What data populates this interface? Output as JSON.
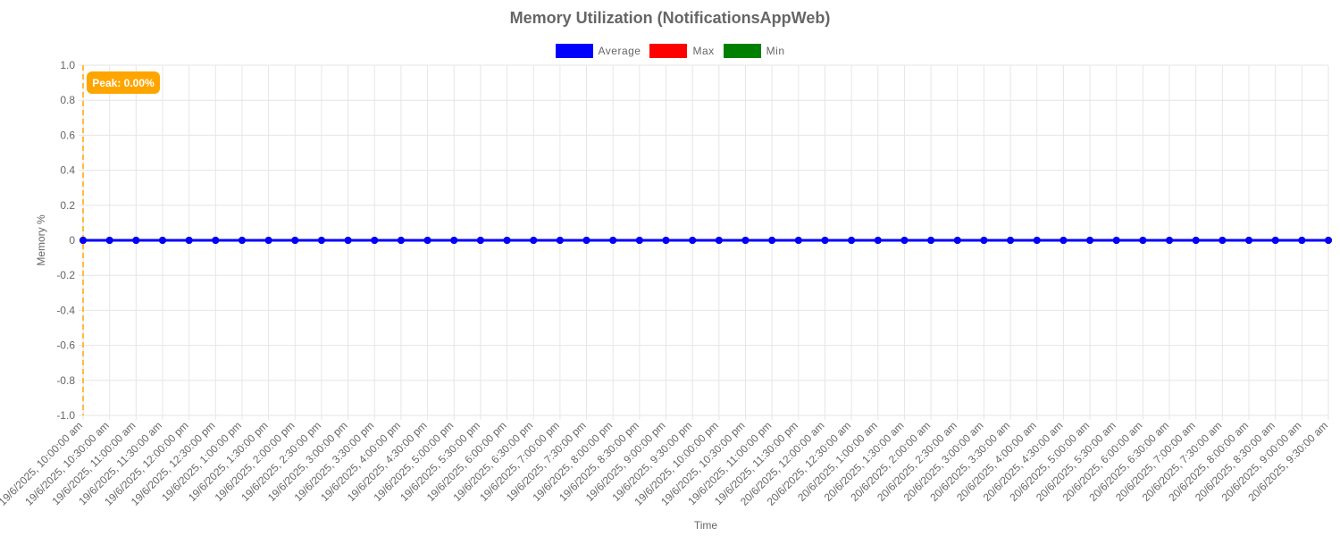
{
  "chart_data": {
    "type": "line",
    "title": "Memory Utilization (NotificationsAppWeb)",
    "xlabel": "Time",
    "ylabel": "Memory %",
    "ylim": [
      -1.0,
      1.0
    ],
    "y_ticks": [
      "1.0",
      "0.8",
      "0.6",
      "0.4",
      "0.2",
      "0",
      "-0.2",
      "-0.4",
      "-0.6",
      "-0.8",
      "-1.0"
    ],
    "grid": true,
    "legend_position": "top",
    "annotation": {
      "label": "Peak: 0.00%",
      "x_index": 0,
      "color": "#FFA500"
    },
    "categories": [
      "19/6/2025, 10:00:00 am",
      "19/6/2025, 10:30:00 am",
      "19/6/2025, 11:00:00 am",
      "19/6/2025, 11:30:00 am",
      "19/6/2025, 12:00:00 pm",
      "19/6/2025, 12:30:00 pm",
      "19/6/2025, 1:00:00 pm",
      "19/6/2025, 1:30:00 pm",
      "19/6/2025, 2:00:00 pm",
      "19/6/2025, 2:30:00 pm",
      "19/6/2025, 3:00:00 pm",
      "19/6/2025, 3:30:00 pm",
      "19/6/2025, 4:00:00 pm",
      "19/6/2025, 4:30:00 pm",
      "19/6/2025, 5:00:00 pm",
      "19/6/2025, 5:30:00 pm",
      "19/6/2025, 6:00:00 pm",
      "19/6/2025, 6:30:00 pm",
      "19/6/2025, 7:00:00 pm",
      "19/6/2025, 7:30:00 pm",
      "19/6/2025, 8:00:00 pm",
      "19/6/2025, 8:30:00 pm",
      "19/6/2025, 9:00:00 pm",
      "19/6/2025, 9:30:00 pm",
      "19/6/2025, 10:00:00 pm",
      "19/6/2025, 10:30:00 pm",
      "19/6/2025, 11:00:00 pm",
      "19/6/2025, 11:30:00 pm",
      "20/6/2025, 12:00:00 am",
      "20/6/2025, 12:30:00 am",
      "20/6/2025, 1:00:00 am",
      "20/6/2025, 1:30:00 am",
      "20/6/2025, 2:00:00 am",
      "20/6/2025, 2:30:00 am",
      "20/6/2025, 3:00:00 am",
      "20/6/2025, 3:30:00 am",
      "20/6/2025, 4:00:00 am",
      "20/6/2025, 4:30:00 am",
      "20/6/2025, 5:00:00 am",
      "20/6/2025, 5:30:00 am",
      "20/6/2025, 6:00:00 am",
      "20/6/2025, 6:30:00 am",
      "20/6/2025, 7:00:00 am",
      "20/6/2025, 7:30:00 am",
      "20/6/2025, 8:00:00 am",
      "20/6/2025, 8:30:00 am",
      "20/6/2025, 9:00:00 am",
      "20/6/2025, 9:30:00 am"
    ],
    "series": [
      {
        "name": "Average",
        "color": "#0000FF",
        "values": [
          0,
          0,
          0,
          0,
          0,
          0,
          0,
          0,
          0,
          0,
          0,
          0,
          0,
          0,
          0,
          0,
          0,
          0,
          0,
          0,
          0,
          0,
          0,
          0,
          0,
          0,
          0,
          0,
          0,
          0,
          0,
          0,
          0,
          0,
          0,
          0,
          0,
          0,
          0,
          0,
          0,
          0,
          0,
          0,
          0,
          0,
          0,
          0
        ]
      },
      {
        "name": "Max",
        "color": "#FF0000",
        "values": [
          0,
          0,
          0,
          0,
          0,
          0,
          0,
          0,
          0,
          0,
          0,
          0,
          0,
          0,
          0,
          0,
          0,
          0,
          0,
          0,
          0,
          0,
          0,
          0,
          0,
          0,
          0,
          0,
          0,
          0,
          0,
          0,
          0,
          0,
          0,
          0,
          0,
          0,
          0,
          0,
          0,
          0,
          0,
          0,
          0,
          0,
          0,
          0
        ]
      },
      {
        "name": "Min",
        "color": "#008000",
        "values": [
          0,
          0,
          0,
          0,
          0,
          0,
          0,
          0,
          0,
          0,
          0,
          0,
          0,
          0,
          0,
          0,
          0,
          0,
          0,
          0,
          0,
          0,
          0,
          0,
          0,
          0,
          0,
          0,
          0,
          0,
          0,
          0,
          0,
          0,
          0,
          0,
          0,
          0,
          0,
          0,
          0,
          0,
          0,
          0,
          0,
          0,
          0,
          0
        ]
      }
    ]
  }
}
